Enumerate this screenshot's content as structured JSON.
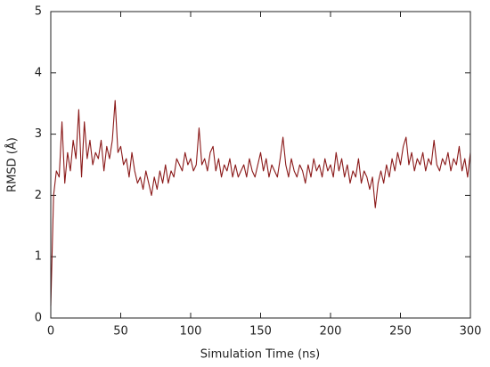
{
  "chart_data": {
    "type": "line",
    "xlabel": "Simulation Time (ns)",
    "ylabel": "RMSD (Å)",
    "xlim": [
      0,
      300
    ],
    "ylim": [
      0,
      5
    ],
    "xticks": [
      0,
      50,
      100,
      150,
      200,
      250,
      300
    ],
    "yticks": [
      0,
      1,
      2,
      3,
      4,
      5
    ],
    "grid": false,
    "series": [
      {
        "name": "RMSD",
        "color": "#8b1a1a",
        "x": [
          0,
          2,
          4,
          6,
          8,
          10,
          12,
          14,
          16,
          18,
          20,
          22,
          24,
          26,
          28,
          30,
          32,
          34,
          36,
          38,
          40,
          42,
          44,
          46,
          48,
          50,
          52,
          54,
          56,
          58,
          60,
          62,
          64,
          66,
          68,
          70,
          72,
          74,
          76,
          78,
          80,
          82,
          84,
          86,
          88,
          90,
          92,
          94,
          96,
          98,
          100,
          102,
          104,
          106,
          108,
          110,
          112,
          114,
          116,
          118,
          120,
          122,
          124,
          126,
          128,
          130,
          132,
          134,
          136,
          138,
          140,
          142,
          144,
          146,
          148,
          150,
          152,
          154,
          156,
          158,
          160,
          162,
          164,
          166,
          168,
          170,
          172,
          174,
          176,
          178,
          180,
          182,
          184,
          186,
          188,
          190,
          192,
          194,
          196,
          198,
          200,
          202,
          204,
          206,
          208,
          210,
          212,
          214,
          216,
          218,
          220,
          222,
          224,
          226,
          228,
          230,
          232,
          234,
          236,
          238,
          240,
          242,
          244,
          246,
          248,
          250,
          252,
          254,
          256,
          258,
          260,
          262,
          264,
          266,
          268,
          270,
          272,
          274,
          276,
          278,
          280,
          282,
          284,
          286,
          288,
          290,
          292,
          294,
          296,
          298,
          300
        ],
        "values": [
          0.2,
          2.0,
          2.4,
          2.3,
          3.2,
          2.2,
          2.7,
          2.4,
          2.9,
          2.6,
          3.4,
          2.3,
          3.2,
          2.6,
          2.9,
          2.5,
          2.7,
          2.6,
          2.9,
          2.4,
          2.8,
          2.6,
          2.9,
          3.55,
          2.7,
          2.8,
          2.5,
          2.6,
          2.3,
          2.7,
          2.4,
          2.2,
          2.3,
          2.1,
          2.4,
          2.2,
          2.0,
          2.3,
          2.1,
          2.4,
          2.2,
          2.5,
          2.2,
          2.4,
          2.3,
          2.6,
          2.5,
          2.4,
          2.7,
          2.5,
          2.6,
          2.4,
          2.5,
          3.1,
          2.5,
          2.6,
          2.4,
          2.7,
          2.8,
          2.4,
          2.6,
          2.3,
          2.5,
          2.4,
          2.6,
          2.3,
          2.5,
          2.3,
          2.4,
          2.5,
          2.3,
          2.6,
          2.4,
          2.3,
          2.5,
          2.7,
          2.4,
          2.6,
          2.3,
          2.5,
          2.4,
          2.3,
          2.6,
          2.95,
          2.5,
          2.3,
          2.6,
          2.4,
          2.3,
          2.5,
          2.4,
          2.2,
          2.5,
          2.3,
          2.6,
          2.4,
          2.5,
          2.3,
          2.6,
          2.4,
          2.5,
          2.3,
          2.7,
          2.4,
          2.6,
          2.3,
          2.5,
          2.2,
          2.4,
          2.3,
          2.6,
          2.2,
          2.4,
          2.3,
          2.1,
          2.3,
          1.8,
          2.2,
          2.4,
          2.2,
          2.5,
          2.3,
          2.6,
          2.4,
          2.7,
          2.5,
          2.8,
          2.95,
          2.5,
          2.7,
          2.4,
          2.6,
          2.5,
          2.7,
          2.4,
          2.6,
          2.5,
          2.9,
          2.5,
          2.4,
          2.6,
          2.5,
          2.7,
          2.4,
          2.6,
          2.5,
          2.8,
          2.4,
          2.6,
          2.3,
          2.7
        ]
      }
    ]
  }
}
